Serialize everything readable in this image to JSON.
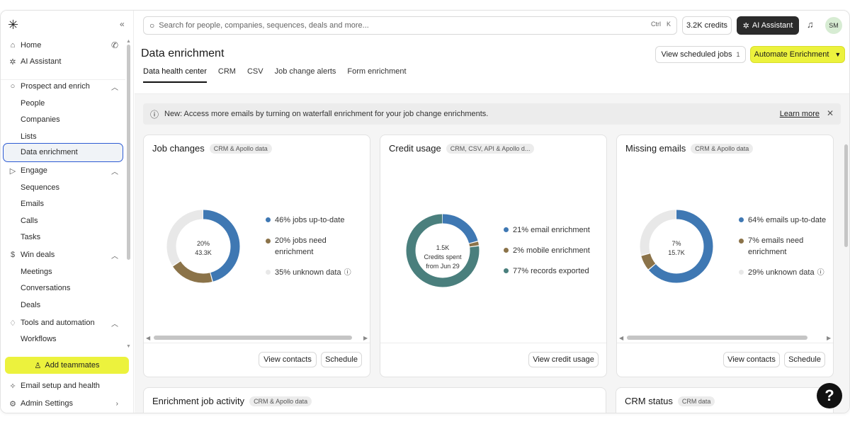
{
  "sidebar": {
    "logo_icon": "apollo-asterisk-logo",
    "collapse_icon": "«",
    "top_items": [
      {
        "label": "Home",
        "icon": "home-icon",
        "extra": "phone-icon"
      },
      {
        "label": "AI Assistant",
        "icon": "ai-icon"
      }
    ],
    "sections": [
      {
        "label": "Prospect and enrich",
        "icon": "search-icon",
        "items": [
          "People",
          "Companies",
          "Lists",
          "Data enrichment"
        ]
      },
      {
        "label": "Engage",
        "icon": "send-icon",
        "items": [
          "Sequences",
          "Emails",
          "Calls",
          "Tasks"
        ]
      },
      {
        "label": "Win deals",
        "icon": "dollar-icon",
        "items": [
          "Meetings",
          "Conversations",
          "Deals"
        ]
      },
      {
        "label": "Tools and automation",
        "icon": "bulb-icon",
        "items": [
          "Workflows"
        ]
      }
    ],
    "selected_item": "Data enrichment",
    "add_teammates": "Add teammates",
    "email_setup": "Email setup and health",
    "admin_settings": "Admin Settings"
  },
  "topbar": {
    "search_placeholder": "Search for people, companies, sequences, deals and more...",
    "shortcut_ctrl": "Ctrl",
    "shortcut_k": "K",
    "credits": "3.2K credits",
    "ai_assistant": "AI Assistant",
    "avatar_initials": "SM"
  },
  "page": {
    "title": "Data enrichment",
    "view_scheduled_jobs": "View scheduled jobs",
    "scheduled_count": "1",
    "automate": "Automate Enrichment",
    "tabs": [
      "Data health center",
      "CRM",
      "CSV",
      "Job change alerts",
      "Form enrichment"
    ],
    "active_tab": "Data health center"
  },
  "banner": {
    "text": "New: Access more emails by turning on waterfall enrichment for your job change enrichments.",
    "learn_more": "Learn more"
  },
  "cards": {
    "job_changes": {
      "title": "Job changes",
      "tag": "CRM & Apollo data",
      "center_top": "20%",
      "center_bottom": "43.3K",
      "legend": [
        "46% jobs up-to-date",
        "20% jobs need enrichment",
        "35% unknown data"
      ],
      "view_contacts": "View contacts",
      "schedule": "Schedule"
    },
    "credit_usage": {
      "title": "Credit usage",
      "tag": "CRM, CSV, API & Apollo d...",
      "center_top": "1.5K",
      "center_mid": "Credits spent",
      "center_bottom": "from Jun 29",
      "legend": [
        "21% email enrichment",
        "2% mobile enrichment",
        "77% records exported"
      ],
      "view_credit_usage": "View credit usage"
    },
    "missing_emails": {
      "title": "Missing emails",
      "tag": "CRM & Apollo data",
      "center_top": "7%",
      "center_bottom": "15.7K",
      "legend": [
        "64% emails up-to-date",
        "7% emails need enrichment",
        "29% unknown data"
      ],
      "view_contacts": "View contacts",
      "schedule": "Schedule"
    },
    "enrichment_job_activity": {
      "title": "Enrichment job activity",
      "tag": "CRM & Apollo data"
    },
    "crm_status": {
      "title": "CRM status",
      "tag": "CRM data"
    }
  },
  "colors": {
    "blue": "#3f78b3",
    "brown": "#8b7349",
    "teal": "#4a7f7d",
    "grey": "#e8e8e8",
    "accent_yellow": "#ecf23d"
  },
  "donuts": {
    "job_changes": [
      {
        "pct": 46,
        "color": "#3f78b3"
      },
      {
        "pct": 20,
        "color": "#8b7349"
      },
      {
        "pct": 34,
        "color": "#e8e8e8"
      }
    ],
    "credit_usage": [
      {
        "pct": 21,
        "color": "#3f78b3"
      },
      {
        "pct": 2,
        "color": "#8b7349"
      },
      {
        "pct": 77,
        "color": "#4a7f7d"
      }
    ],
    "missing_emails": [
      {
        "pct": 64,
        "color": "#3f78b3"
      },
      {
        "pct": 7,
        "color": "#8b7349"
      },
      {
        "pct": 29,
        "color": "#e8e8e8"
      }
    ]
  },
  "help_label": "?"
}
